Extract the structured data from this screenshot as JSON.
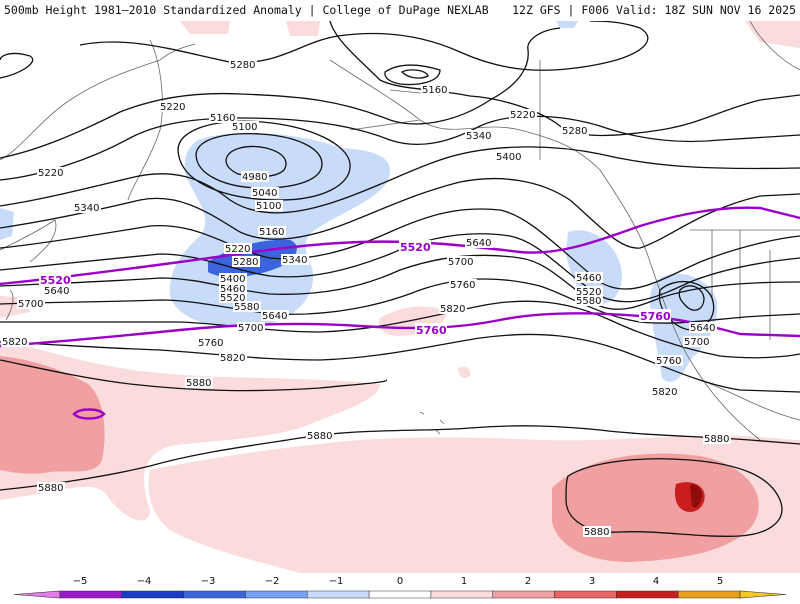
{
  "header": {
    "left": "500mb Height 1981–2010 Standardized Anomaly | College of DuPage NEXLAB",
    "right": "12Z GFS | F006 Valid: 18Z SUN NOV 16 2025"
  },
  "contours": {
    "c5280a": "5280",
    "c5160a": "5160",
    "c5220a": "5220",
    "c5160b": "5160",
    "c5100": "5100",
    "c4980": "4980",
    "c5040": "5040",
    "c5100b": "5100",
    "c5220b": "5220",
    "c5340a": "5340",
    "c5220c": "5220",
    "c5280b": "5280",
    "c5340b": "5340",
    "c5400a": "5400",
    "c5160c": "5160",
    "c5220d": "5220",
    "c5280c": "5280",
    "c5340c": "5340",
    "c5400b": "5400",
    "c5460a": "5460",
    "c5520a": "5520",
    "c5580a": "5580",
    "c5640a": "5640",
    "c5700a": "5700",
    "c5640b": "5640",
    "c5700b": "5700",
    "c5760a": "5760",
    "c5820a": "5820",
    "c5460b": "5460",
    "c5520b": "5520",
    "c5580b": "5580",
    "c5640c": "5640",
    "c5700c": "5700",
    "c5760b": "5760",
    "c5820b": "5820",
    "c5820c": "5820",
    "c5880a": "5880",
    "c5880b": "5880",
    "c5880c": "5880",
    "c5880d": "5880",
    "c5880e": "5880",
    "c5760c": "5760",
    "c5700d": "5700",
    "c5820d": "5820",
    "c5640d": "5640"
  },
  "purple": {
    "p5520a": "5520",
    "p5520b": "5520",
    "p5760a": "5760",
    "p5760b": "5760"
  },
  "colorbar": {
    "ticks": [
      "−5",
      "−4",
      "−3",
      "−2",
      "−1",
      "0",
      "1",
      "2",
      "3",
      "4",
      "5"
    ],
    "colors": [
      "#e17ce8",
      "#9b19c8",
      "#1a3cc8",
      "#3c64dc",
      "#78a0f0",
      "#c8dcfa",
      "#ffffff",
      "#fadcdc",
      "#f0a0a0",
      "#e66464",
      "#c81e1e",
      "#e6a01e",
      "#f5c828"
    ]
  }
}
